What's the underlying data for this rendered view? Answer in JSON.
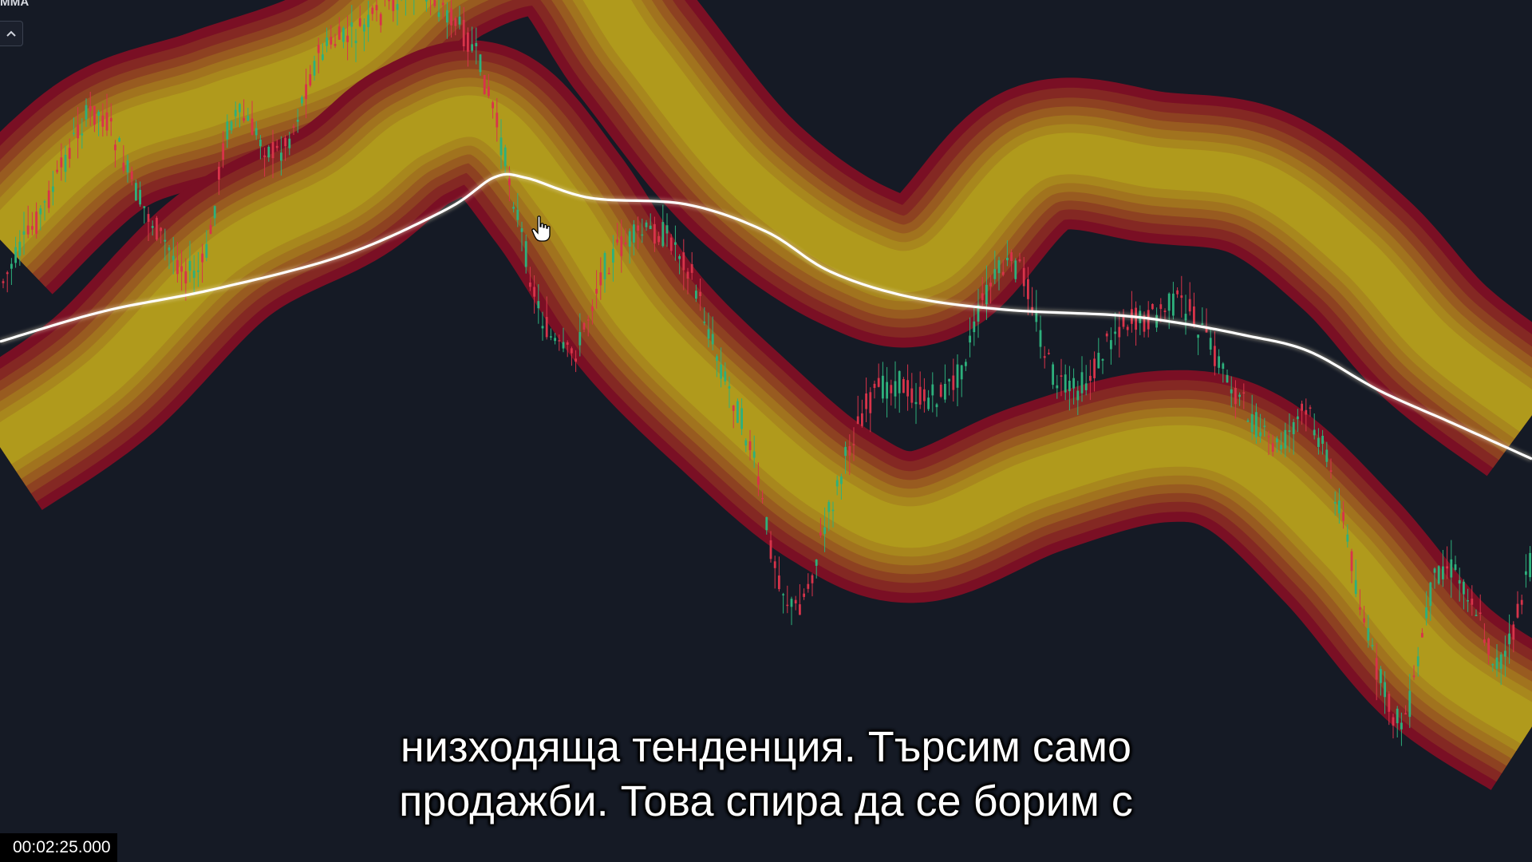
{
  "indicator": {
    "label": "MMA",
    "collapse_icon": "chevron-up-icon"
  },
  "subtitles": {
    "line1": "низходяща тенденция. Търсим само",
    "line2": "продажби. Това спира да се борим с"
  },
  "playback": {
    "timestamp": "00:02:25.000"
  },
  "colors": {
    "background": "#151a25",
    "band_outer": "#7a0f24",
    "band_inner": "#b09a1c",
    "ma_line": "#ffffff",
    "candle_up": "#2db07c",
    "candle_down": "#d8334a"
  }
}
